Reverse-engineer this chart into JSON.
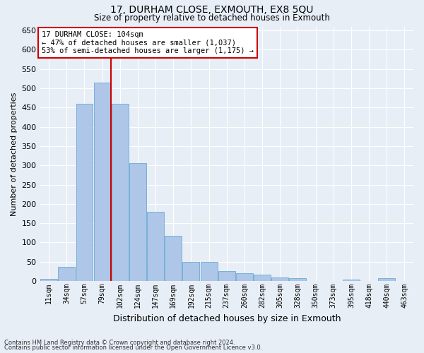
{
  "title1": "17, DURHAM CLOSE, EXMOUTH, EX8 5QU",
  "title2": "Size of property relative to detached houses in Exmouth",
  "xlabel": "Distribution of detached houses by size in Exmouth",
  "ylabel": "Number of detached properties",
  "categories": [
    "11sqm",
    "34sqm",
    "57sqm",
    "79sqm",
    "102sqm",
    "124sqm",
    "147sqm",
    "169sqm",
    "192sqm",
    "215sqm",
    "237sqm",
    "260sqm",
    "282sqm",
    "305sqm",
    "328sqm",
    "350sqm",
    "373sqm",
    "395sqm",
    "418sqm",
    "440sqm",
    "463sqm"
  ],
  "values": [
    5,
    37,
    459,
    515,
    459,
    305,
    180,
    117,
    50,
    50,
    26,
    20,
    16,
    10,
    7,
    0,
    0,
    4,
    0,
    7,
    0
  ],
  "bar_color": "#aec6e8",
  "bar_edge_color": "#6aaad4",
  "bg_color": "#e8eef6",
  "grid_color": "#ffffff",
  "vline_color": "#cc0000",
  "annotation_text": "17 DURHAM CLOSE: 104sqm\n← 47% of detached houses are smaller (1,037)\n53% of semi-detached houses are larger (1,175) →",
  "annotation_box_color": "#ffffff",
  "annotation_box_edge": "#cc0000",
  "footnote1": "Contains HM Land Registry data © Crown copyright and database right 2024.",
  "footnote2": "Contains public sector information licensed under the Open Government Licence v3.0.",
  "ylim": [
    0,
    660
  ],
  "yticks": [
    0,
    50,
    100,
    150,
    200,
    250,
    300,
    350,
    400,
    450,
    500,
    550,
    600,
    650
  ]
}
